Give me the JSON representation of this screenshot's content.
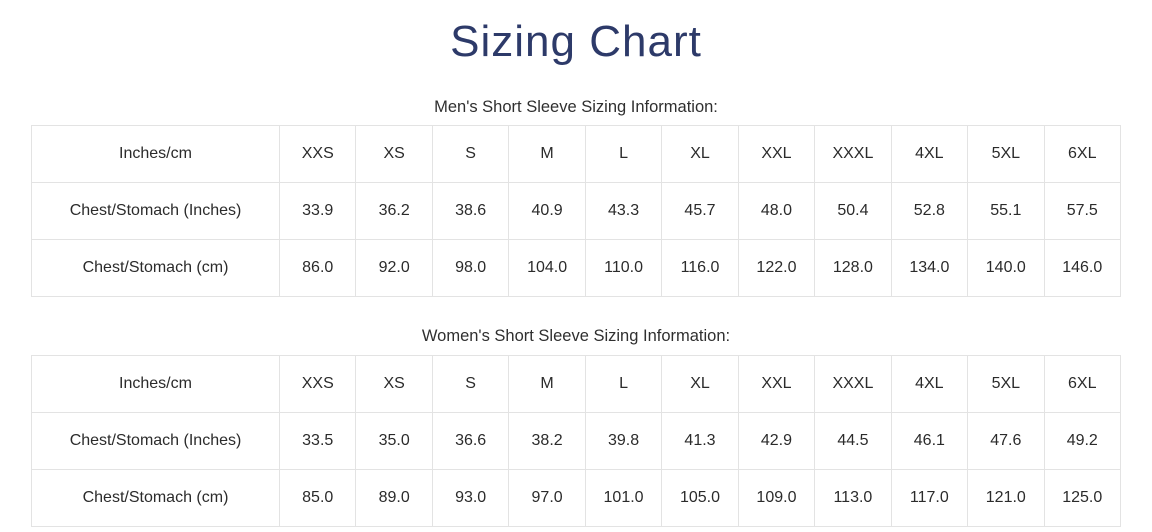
{
  "page": {
    "title": "Sizing Chart",
    "title_color": "#2d3a69",
    "background_color": "#ffffff",
    "table_border_color": "#e3e3e3",
    "table_text_color": "#2b2b2b"
  },
  "tables": [
    {
      "caption": "Men's Short Sleeve Sizing Information:",
      "header": [
        "Inches/cm",
        "XXS",
        "XS",
        "S",
        "M",
        "L",
        "XL",
        "XXL",
        "XXXL",
        "4XL",
        "5XL",
        "6XL"
      ],
      "rows": [
        [
          "Chest/Stomach (Inches)",
          "33.9",
          "36.2",
          "38.6",
          "40.9",
          "43.3",
          "45.7",
          "48.0",
          "50.4",
          "52.8",
          "55.1",
          "57.5"
        ],
        [
          "Chest/Stomach (cm)",
          "86.0",
          "92.0",
          "98.0",
          "104.0",
          "110.0",
          "116.0",
          "122.0",
          "128.0",
          "134.0",
          "140.0",
          "146.0"
        ]
      ]
    },
    {
      "caption": "Women's Short Sleeve Sizing Information:",
      "header": [
        "Inches/cm",
        "XXS",
        "XS",
        "S",
        "M",
        "L",
        "XL",
        "XXL",
        "XXXL",
        "4XL",
        "5XL",
        "6XL"
      ],
      "rows": [
        [
          "Chest/Stomach (Inches)",
          "33.5",
          "35.0",
          "36.6",
          "38.2",
          "39.8",
          "41.3",
          "42.9",
          "44.5",
          "46.1",
          "47.6",
          "49.2"
        ],
        [
          "Chest/Stomach (cm)",
          "85.0",
          "89.0",
          "93.0",
          "97.0",
          "101.0",
          "105.0",
          "109.0",
          "113.0",
          "117.0",
          "121.0",
          "125.0"
        ]
      ]
    }
  ]
}
